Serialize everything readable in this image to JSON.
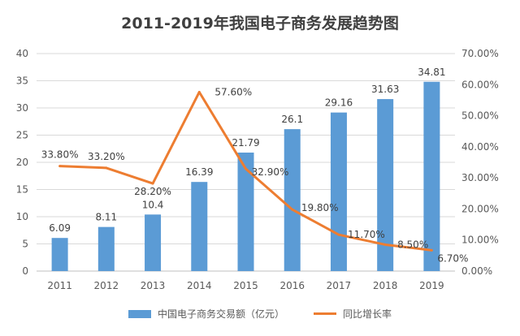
{
  "chart_data": {
    "type": "bar+line",
    "title": "2011-2019年我国电子商务发展趋势图",
    "categories": [
      "2011",
      "2012",
      "2013",
      "2014",
      "2015",
      "2016",
      "2017",
      "2018",
      "2019"
    ],
    "series": [
      {
        "name": "中国电子商务交易额（亿元）",
        "type": "bar",
        "axis": "left",
        "color": "#5B9BD5",
        "values": [
          6.09,
          8.11,
          10.4,
          16.39,
          21.79,
          26.1,
          29.16,
          31.63,
          34.81
        ],
        "labels": [
          "6.09",
          "8.11",
          "10.4",
          "16.39",
          "21.79",
          "26.1",
          "29.16",
          "31.63",
          "34.81"
        ]
      },
      {
        "name": "同比增长率",
        "type": "line",
        "axis": "right",
        "color": "#ED7D31",
        "values": [
          33.8,
          33.2,
          28.2,
          57.6,
          32.9,
          19.8,
          11.7,
          8.5,
          6.7
        ],
        "labels": [
          "33.80%",
          "33.20%",
          "28.20%",
          "57.60%",
          "32.90%",
          "19.80%",
          "11.70%",
          "8.50%",
          "6.70%"
        ]
      }
    ],
    "y_left": {
      "min": 0,
      "max": 40,
      "ticks": [
        "0",
        "5",
        "10",
        "15",
        "20",
        "25",
        "30",
        "35",
        "40"
      ]
    },
    "y_right": {
      "min": 0,
      "max": 70,
      "ticks": [
        "0.00%",
        "10.00%",
        "20.00%",
        "30.00%",
        "40.00%",
        "50.00%",
        "60.00%",
        "70.00%"
      ]
    },
    "grid": true,
    "legend_position": "bottom"
  }
}
